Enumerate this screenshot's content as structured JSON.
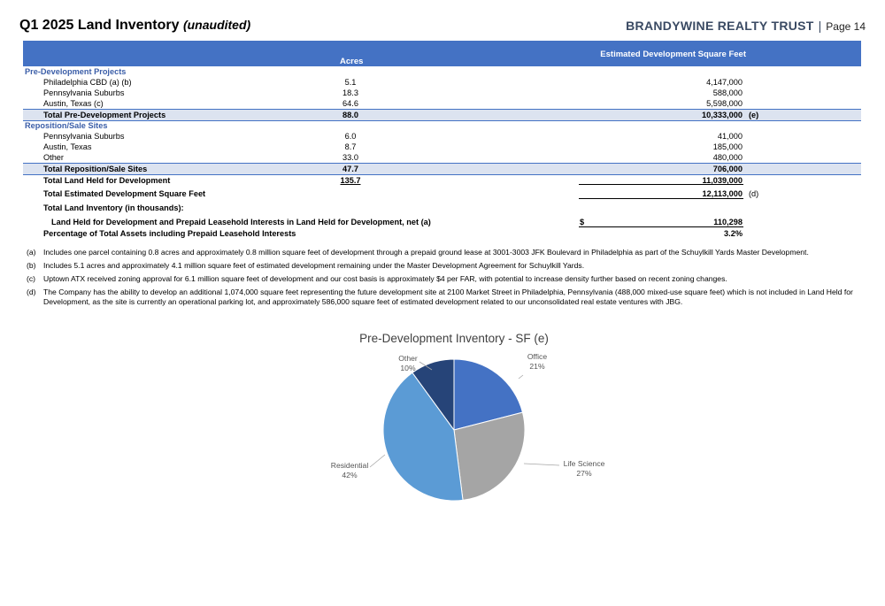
{
  "header": {
    "title": "Q1 2025 Land Inventory",
    "title_qualifier": "(unaudited)",
    "company": "BRANDYWINE REALTY TRUST",
    "separator": "|",
    "page": "Page 14"
  },
  "table": {
    "columns": {
      "acres": "Acres",
      "sf": "Estimated Development Square Feet"
    },
    "pre_dev": {
      "heading": "Pre-Development Projects",
      "rows": [
        {
          "label": "Philadelphia CBD (a) (b)",
          "acres": "5.1",
          "sf": "4,147,000"
        },
        {
          "label": "Pennsylvania Suburbs",
          "acres": "18.3",
          "sf": "588,000"
        },
        {
          "label": "Austin, Texas (c)",
          "acres": "64.6",
          "sf": "5,598,000"
        }
      ],
      "total": {
        "label": "Total Pre-Development Projects",
        "acres": "88.0",
        "sf": "10,333,000",
        "note": "(e)"
      }
    },
    "reposition": {
      "heading": "Reposition/Sale Sites",
      "rows": [
        {
          "label": "Pennsylvania Suburbs",
          "acres": "6.0",
          "sf": "41,000"
        },
        {
          "label": "Austin, Texas",
          "acres": "8.7",
          "sf": "185,000"
        },
        {
          "label": "Other",
          "acres": "33.0",
          "sf": "480,000"
        }
      ],
      "total": {
        "label": "Total Reposition/Sale Sites",
        "acres": "47.7",
        "sf": "706,000"
      }
    },
    "land_held": {
      "label": "Total Land Held for Development",
      "acres": "135.7",
      "sf": "11,039,000"
    },
    "est_dev": {
      "label": "Total Estimated Development Square Feet",
      "sf": "12,113,000",
      "note": "(d)"
    },
    "inventory_heading": "Total Land Inventory (in thousands):",
    "land_held_net": {
      "label": "Land Held for Development and Prepaid Leasehold Interests in Land Held for Development, net (a)",
      "currency": "$",
      "value": "110,298"
    },
    "pct_assets": {
      "label": "Percentage of Total Assets including Prepaid Leasehold Interests",
      "value": "3.2%"
    }
  },
  "footnotes": [
    {
      "mark": "(a)",
      "text": "Includes one parcel containing 0.8 acres and approximately 0.8 million square feet of development through a prepaid ground lease at 3001-3003 JFK Boulevard in Philadelphia as part of the Schuylkill Yards Master Development."
    },
    {
      "mark": "(b)",
      "text": "Includes 5.1 acres and approximately 4.1 million square feet of estimated development remaining under the Master Development Agreement for Schuylkill Yards."
    },
    {
      "mark": "(c)",
      "text": "Uptown ATX received zoning approval for 6.1 million square feet of development and our cost basis is approximately $4 per FAR, with potential to increase density further based on recent zoning changes."
    },
    {
      "mark": "(d)",
      "text": "The Company has the ability to develop an additional 1,074,000 square feet representing the future development site at 2100 Market Street in Philadelphia, Pennsylvania (488,000 mixed-use square feet) which is not included in Land Held for Development, as the site is currently an operational parking lot, and approximately 586,000 square feet of estimated development related to our unconsolidated real estate ventures with JBG."
    }
  ],
  "chart_data": {
    "type": "pie",
    "title": "Pre-Development Inventory - SF (e)",
    "slices": [
      {
        "name": "Office",
        "value": 21,
        "label": "21%",
        "color": "#4472c4"
      },
      {
        "name": "Life Science",
        "value": 27,
        "label": "27%",
        "color": "#a5a5a5"
      },
      {
        "name": "Residential",
        "value": 42,
        "label": "42%",
        "color": "#5b9bd5"
      },
      {
        "name": "Other",
        "value": 10,
        "label": "10%",
        "color": "#264478"
      }
    ]
  }
}
